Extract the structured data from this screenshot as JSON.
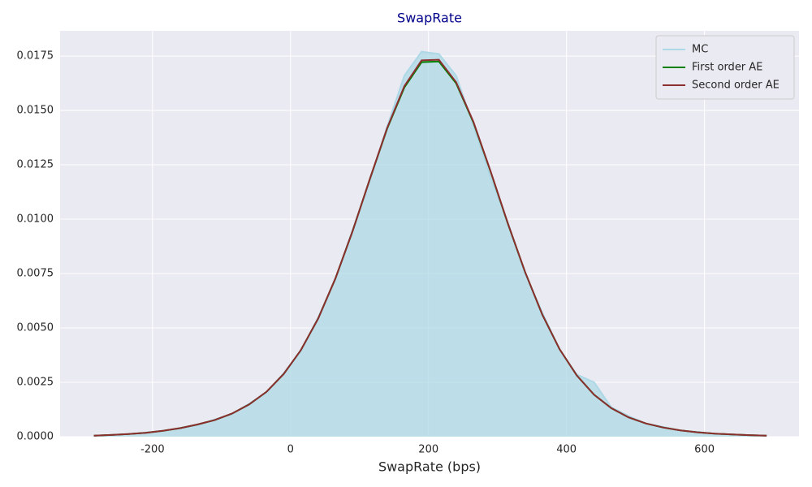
{
  "chart_data": {
    "type": "line",
    "title": "SwapRate",
    "x_label": "SwapRate (bps)",
    "x": [
      -285,
      -260,
      -235,
      -210,
      -185,
      -160,
      -135,
      -110,
      -85,
      -60,
      -35,
      -10,
      15,
      40,
      65,
      90,
      115,
      140,
      165,
      190,
      215,
      240,
      265,
      290,
      315,
      340,
      365,
      390,
      415,
      440,
      465,
      490,
      515,
      540,
      565,
      590,
      615,
      640,
      665,
      690
    ],
    "series": [
      {
        "name": "MC",
        "color": "#add8e6",
        "fill": true,
        "values": [
          4e-05,
          7e-05,
          0.00012,
          0.00019,
          0.00026,
          0.0004,
          0.00054,
          0.00079,
          0.00104,
          0.00152,
          0.00203,
          0.00292,
          0.00394,
          0.00548,
          0.00722,
          0.00951,
          0.01178,
          0.01425,
          0.0166,
          0.0177,
          0.0176,
          0.0166,
          0.0143,
          0.0119,
          0.00985,
          0.0075,
          0.0057,
          0.004,
          0.00286,
          0.0025,
          0.00135,
          0.00095,
          0.0006,
          0.00045,
          0.00028,
          0.00022,
          0.00013,
          0.0001,
          6e-05,
          4e-05
        ]
      },
      {
        "name": "First order AE",
        "color": "#008000",
        "values": [
          5e-05,
          8e-05,
          0.00012,
          0.00018,
          0.00027,
          0.00039,
          0.00056,
          0.00076,
          0.00106,
          0.00148,
          0.00206,
          0.00288,
          0.00398,
          0.00543,
          0.00727,
          0.00946,
          0.01185,
          0.01415,
          0.01606,
          0.01722,
          0.01725,
          0.01625,
          0.01445,
          0.01218,
          0.0098,
          0.00757,
          0.00561,
          0.00402,
          0.00281,
          0.00193,
          0.00131,
          0.00089,
          0.00061,
          0.00042,
          0.00029,
          0.0002,
          0.00014,
          0.0001,
          7e-05,
          5e-05
        ]
      },
      {
        "name": "Second order AE",
        "color": "#8b2e2e",
        "values": [
          5e-05,
          8e-05,
          0.00012,
          0.00018,
          0.00027,
          0.00039,
          0.00056,
          0.00076,
          0.00106,
          0.00148,
          0.00206,
          0.00288,
          0.00398,
          0.00543,
          0.00727,
          0.00946,
          0.01185,
          0.01418,
          0.01612,
          0.0173,
          0.01733,
          0.0163,
          0.01448,
          0.0122,
          0.00981,
          0.00757,
          0.00561,
          0.00402,
          0.00281,
          0.00193,
          0.00131,
          0.00089,
          0.00061,
          0.00042,
          0.00029,
          0.0002,
          0.00014,
          0.0001,
          7e-05,
          5e-05
        ]
      }
    ],
    "xlim": [
      -334,
      737
    ],
    "xticks": [
      -200,
      0,
      200,
      400,
      600
    ],
    "ylim": [
      0,
      0.01866
    ],
    "yticks": [
      {
        "value": 0,
        "label": "0.0000"
      },
      {
        "value": 0.0025,
        "label": "0.0025"
      },
      {
        "value": 0.005,
        "label": "0.0050"
      },
      {
        "value": 0.0075,
        "label": "0.0075"
      },
      {
        "value": 0.01,
        "label": "0.0100"
      },
      {
        "value": 0.0125,
        "label": "0.0125"
      },
      {
        "value": 0.015,
        "label": "0.0150"
      },
      {
        "value": 0.0175,
        "label": "0.0175"
      }
    ],
    "grid": true,
    "legend": "upper right"
  }
}
